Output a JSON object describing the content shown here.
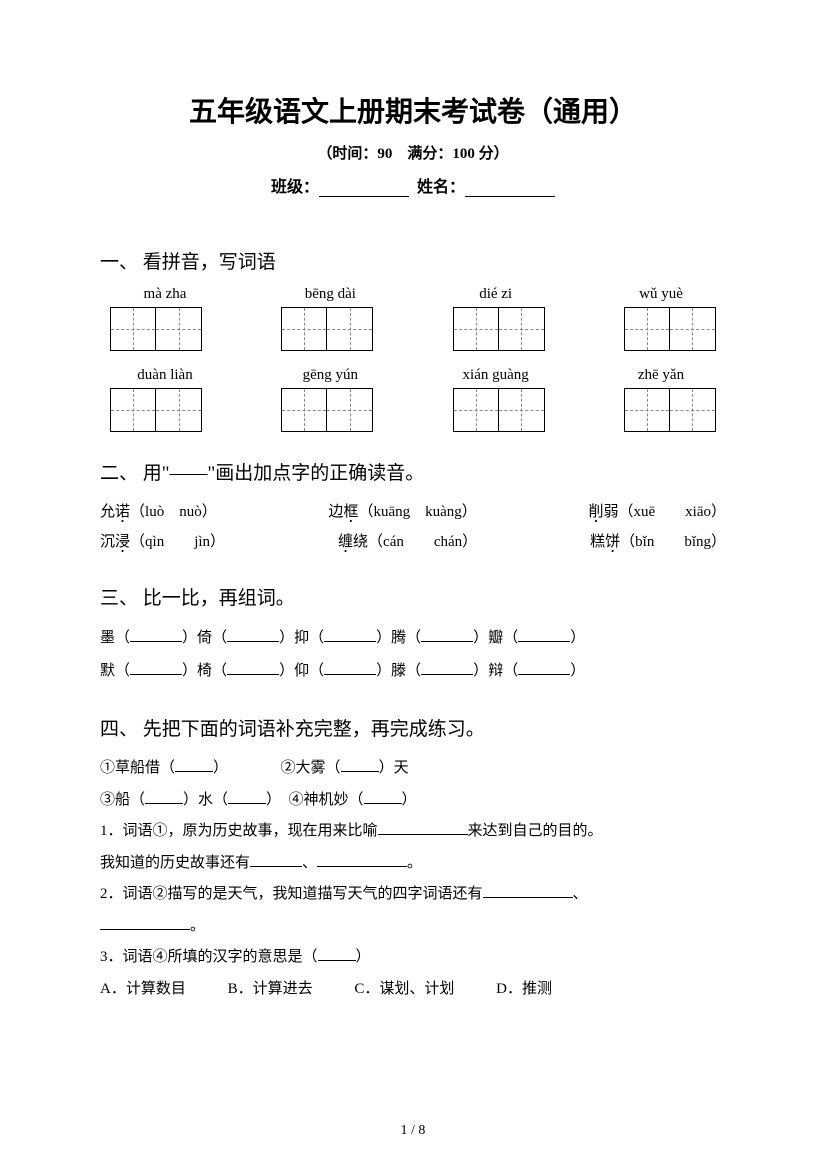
{
  "header": {
    "title": "五年级语文上册期末考试卷（通用）",
    "subtitle": "（时间：90　满分：100 分）",
    "class_label": "班级：",
    "name_label": "姓名："
  },
  "section1": {
    "title": "一、 看拼音，写词语",
    "row1": [
      "mà zha",
      "bēng dài",
      "dié zi",
      "wǔ yuè"
    ],
    "row2": [
      "duàn liàn",
      "gēng yún",
      "xián guàng",
      "zhē yǎn"
    ]
  },
  "section2": {
    "title": "二、 用\"——\"画出加点字的正确读音。",
    "items": [
      {
        "word_pre": "允",
        "dot": "诺",
        "word_post": "",
        "opts": "（luò　nuò）"
      },
      {
        "word_pre": "边",
        "dot": "框",
        "word_post": "",
        "opts": "（kuāng　kuàng）"
      },
      {
        "word_pre": "",
        "dot": "削",
        "word_post": "弱",
        "opts": "（xuē　　xiāo）"
      },
      {
        "word_pre": "沉",
        "dot": "浸",
        "word_post": "",
        "opts": "（qìn　　jìn）"
      },
      {
        "word_pre": "",
        "dot": "缠",
        "word_post": "绕",
        "opts": "（cán　　chán）"
      },
      {
        "word_pre": "糕",
        "dot": "饼",
        "word_post": "",
        "opts": "（bǐn　　bǐng）"
      }
    ]
  },
  "section3": {
    "title": "三、 比一比，再组词。",
    "line1": [
      "墨",
      "倚",
      "抑",
      "腾",
      "瓣"
    ],
    "line2": [
      "默",
      "椅",
      "仰",
      "滕",
      "辩"
    ]
  },
  "section4": {
    "title": "四、 先把下面的词语补充完整，再完成练习。",
    "l1a": "①草船借（",
    "l1b": "）",
    "l1c": "②大雾（",
    "l1d": "）天",
    "l2a": "③船（",
    "l2b": "）水（",
    "l2c": "）　④神机妙（",
    "l2d": "）",
    "l3": "1．词语①，原为历史故事，现在用来比喻",
    "l3b": "来达到自己的目的。",
    "l4a": "我知道的历史故事还有",
    "l4b": "、",
    "l4c": "。",
    "l5a": "2．词语②描写的是天气，我知道描写天气的四字词语还有",
    "l5b": "、",
    "l6": "。",
    "l7": "3．词语④所填的汉字的意思是（",
    "l7b": "）",
    "opts": {
      "a": "A．计算数目",
      "b": "B．计算进去",
      "c": "C．谋划、计划",
      "d": "D．推测"
    }
  },
  "footer": "1 / 8"
}
